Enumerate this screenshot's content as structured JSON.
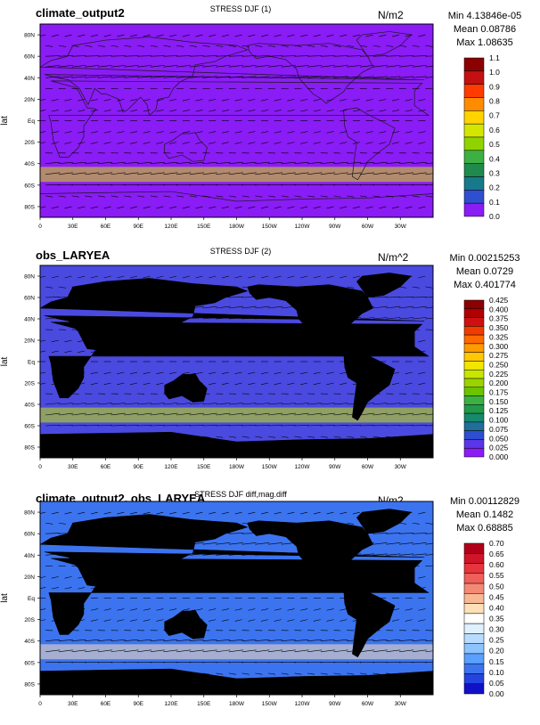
{
  "chart_data": [
    {
      "type": "heatmap",
      "title": "STRESS DJF (1)",
      "left_label": "climate_output2",
      "units": "N/m2",
      "stats": [
        "Min 4.13846e-05",
        "Mean 0.08786",
        "Max 1.08635"
      ],
      "ylabel": "lat",
      "x_ticks": [
        "0",
        "30E",
        "60E",
        "90E",
        "120E",
        "150E",
        "180W",
        "150W",
        "120W",
        "90W",
        "60W",
        "30W"
      ],
      "y_ticks": [
        "80N",
        "60N",
        "40N",
        "20N",
        "Eq",
        "20S",
        "40S",
        "60S",
        "80S"
      ],
      "colorbar": {
        "levels": [
          "1.1",
          "1.0",
          "0.9",
          "0.8",
          "0.7",
          "0.6",
          "0.5",
          "0.4",
          "0.3",
          "0.2",
          "0.1",
          "0.0"
        ],
        "colors": [
          "#8b0000",
          "#c41010",
          "#ff3b00",
          "#ff8c00",
          "#ffd200",
          "#d4e600",
          "#8fd400",
          "#3cb043",
          "#1f8a4c",
          "#177a8a",
          "#2f4fd0",
          "#8a1cf5"
        ]
      },
      "background": "#8a1cf5",
      "land_masked": false
    },
    {
      "type": "heatmap",
      "title": "STRESS DJF (2)",
      "left_label": "obs_LARYEA",
      "units": "N/m^2",
      "stats": [
        "Min 0.00215253",
        "Mean 0.0729",
        "Max 0.401774"
      ],
      "ylabel": "lat",
      "x_ticks": [
        "0",
        "30E",
        "60E",
        "90E",
        "120E",
        "150E",
        "180W",
        "150W",
        "120W",
        "90W",
        "60W",
        "30W"
      ],
      "y_ticks": [
        "80N",
        "60N",
        "40N",
        "20N",
        "Eq",
        "20S",
        "40S",
        "60S",
        "80S"
      ],
      "colorbar": {
        "levels": [
          "0.425",
          "0.400",
          "0.375",
          "0.350",
          "0.325",
          "0.300",
          "0.275",
          "0.250",
          "0.225",
          "0.200",
          "0.175",
          "0.150",
          "0.125",
          "0.100",
          "0.075",
          "0.050",
          "0.025",
          "0.000"
        ],
        "colors": [
          "#8b0000",
          "#b00000",
          "#d01010",
          "#f03c00",
          "#ff6a00",
          "#ff9a00",
          "#ffc800",
          "#f2e600",
          "#c8e600",
          "#9ad400",
          "#6cc400",
          "#3cb043",
          "#22994a",
          "#168a6a",
          "#1f6f9a",
          "#2c4fd0",
          "#5a36e8",
          "#8a1cf5"
        ]
      },
      "background": "#4a4ae0",
      "land_masked": true
    },
    {
      "type": "heatmap",
      "title": "STRESS DJF diff,mag.diff",
      "left_label": "climate_output2, obs_LARYEA",
      "units": "N/m2",
      "stats": [
        "Min 0.00112829",
        "Mean 0.1482",
        "Max 0.68885"
      ],
      "ylabel": "lat",
      "x_ticks": [
        "0",
        "30E",
        "60E",
        "90E",
        "120E",
        "150E",
        "180W",
        "150W",
        "120W",
        "90W",
        "60W",
        "30W"
      ],
      "y_ticks": [
        "80N",
        "60N",
        "40N",
        "20N",
        "Eq",
        "20S",
        "40S",
        "60S",
        "80S"
      ],
      "colorbar": {
        "levels": [
          "0.70",
          "0.65",
          "0.60",
          "0.55",
          "0.50",
          "0.45",
          "0.40",
          "0.35",
          "0.30",
          "0.25",
          "0.20",
          "0.15",
          "0.10",
          "0.05",
          "0.00"
        ],
        "colors": [
          "#b0001a",
          "#d0142a",
          "#e8343c",
          "#f0605a",
          "#f48a74",
          "#f8b894",
          "#fde0b8",
          "#ffffff",
          "#e0f0ff",
          "#b8dcff",
          "#8cc4ff",
          "#5aa0ff",
          "#3c74f0",
          "#2444e0",
          "#1010c8"
        ]
      },
      "background": "#3c74f0",
      "land_masked": true
    }
  ]
}
